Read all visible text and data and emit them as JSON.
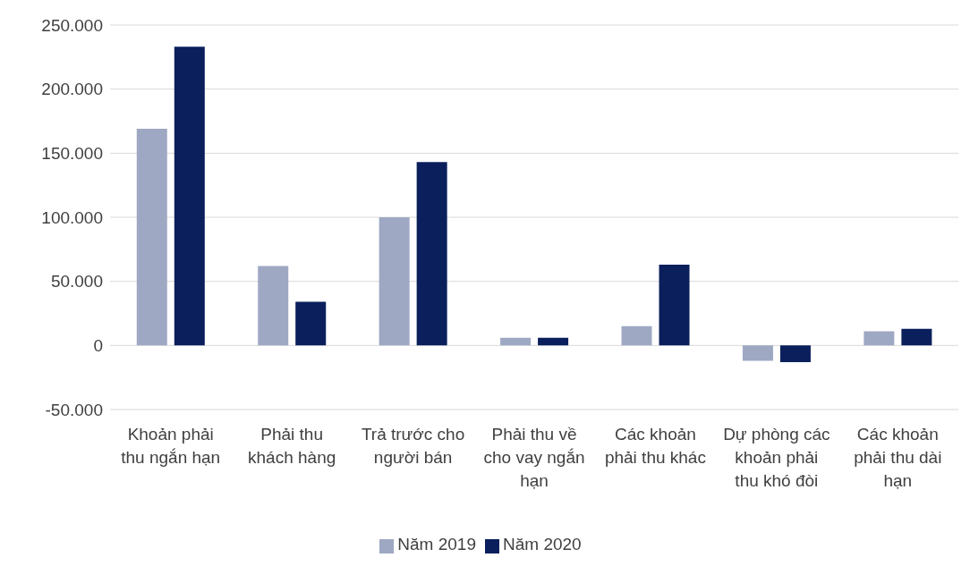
{
  "chart_data": {
    "type": "bar",
    "categories": [
      "Khoản phải thu ngắn hạn",
      "Phải thu khách hàng",
      "Trả trước cho người bán",
      "Phải thu về cho vay ngắn hạn",
      "Các khoản phải thu khác",
      "Dự phòng các khoản phải thu khó đòi",
      "Các khoản phải thu dài hạn"
    ],
    "series": [
      {
        "name": "Năm 2019",
        "color": "#9ea8c3",
        "values": [
          169000,
          62000,
          100000,
          6000,
          15000,
          -12000,
          11000
        ]
      },
      {
        "name": "Năm 2020",
        "color": "#0a1f5c",
        "values": [
          233000,
          34000,
          143000,
          6000,
          63000,
          -13000,
          13000
        ]
      }
    ],
    "ylim": [
      -50000,
      250000
    ],
    "yticks": [
      {
        "value": -50000,
        "label": "-50.000"
      },
      {
        "value": 0,
        "label": "0"
      },
      {
        "value": 50000,
        "label": "50.000"
      },
      {
        "value": 100000,
        "label": "100.000"
      },
      {
        "value": 150000,
        "label": "150.000"
      },
      {
        "value": 200000,
        "label": "200.000"
      },
      {
        "value": 250000,
        "label": "250.000"
      }
    ],
    "grid": "y",
    "legend": "bottom"
  }
}
